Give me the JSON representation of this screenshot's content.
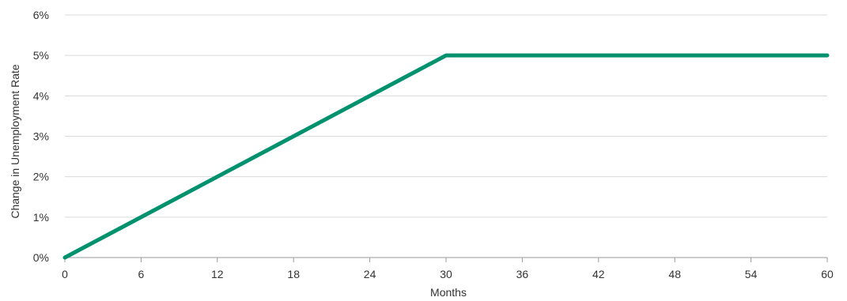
{
  "chart_data": {
    "type": "line",
    "title": "",
    "xlabel": "Months",
    "ylabel": "Change in Unemployment Rate",
    "xlim": [
      0,
      60
    ],
    "ylim": [
      0,
      6
    ],
    "x_ticks": [
      0,
      6,
      12,
      18,
      24,
      30,
      36,
      42,
      48,
      54,
      60
    ],
    "x_tick_labels": [
      "0",
      "6",
      "12",
      "18",
      "24",
      "30",
      "36",
      "42",
      "48",
      "54",
      "60"
    ],
    "y_ticks": [
      0,
      1,
      2,
      3,
      4,
      5,
      6
    ],
    "y_tick_labels": [
      "0%",
      "1%",
      "2%",
      "3%",
      "4%",
      "5%",
      "6%"
    ],
    "grid": "horizontal",
    "legend": "none",
    "series": [
      {
        "color": "#00916e",
        "points": [
          {
            "x": 0,
            "y": 0
          },
          {
            "x": 30,
            "y": 5
          },
          {
            "x": 60,
            "y": 5
          }
        ]
      }
    ]
  }
}
